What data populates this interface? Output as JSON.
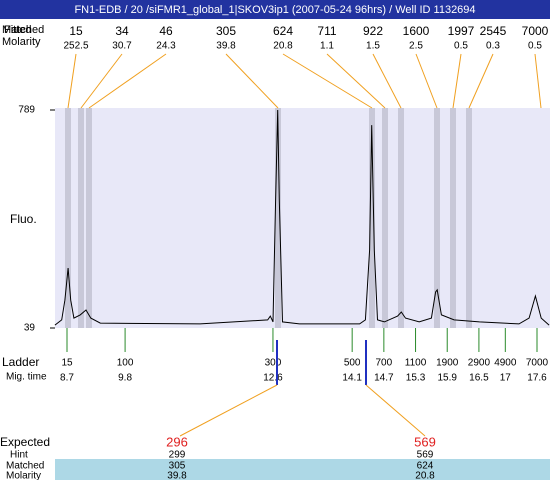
{
  "header": {
    "title": "FN1-EDB / 20 /siFMR1_global_1|SKOV3ip1 (2007-05-24 96hrs) / Well ID 1132694"
  },
  "peaks": {
    "size_label_fitted": "Fitted",
    "size_label": "Matched",
    "molarity_label": "Molarity",
    "sizes": [
      "15",
      "34",
      "46",
      "305",
      "624",
      "711",
      "922",
      "1600",
      "1997",
      "2545",
      "7000"
    ],
    "molarities": [
      "252.5",
      "30.7",
      "24.3",
      "39.8",
      "20.8",
      "1.1",
      "1.5",
      "2.5",
      "0.5",
      "0.3",
      "0.5"
    ]
  },
  "chart_data": {
    "type": "line",
    "y_label": "Fluo.",
    "ylim": [
      39,
      789
    ],
    "yticks": [
      789,
      39
    ],
    "xlim": [
      8.7,
      17.6
    ],
    "color": "#000000",
    "x": [
      8.47,
      8.6,
      8.66,
      8.72,
      8.77,
      8.83,
      8.95,
      9.06,
      9.15,
      9.33,
      11.22,
      12.5,
      12.55,
      12.6,
      12.65,
      12.69,
      12.72,
      12.78,
      13.1,
      14.24,
      14.35,
      14.43,
      14.47,
      14.52,
      14.58,
      14.71,
      14.96,
      15.03,
      15.11,
      15.37,
      15.6,
      15.68,
      15.71,
      15.79,
      16.03,
      16.51,
      17.26,
      17.45,
      17.57,
      17.68,
      17.83
    ],
    "values": [
      49,
      67,
      135,
      245,
      135,
      73,
      84,
      101,
      73,
      56,
      53,
      67,
      80,
      60,
      479,
      789,
      479,
      60,
      53,
      53,
      67,
      307,
      737,
      307,
      67,
      60,
      80,
      94,
      73,
      60,
      73,
      163,
      170,
      84,
      67,
      60,
      53,
      73,
      149,
      73,
      49
    ]
  },
  "ladder": {
    "label": "Ladder",
    "time_label": "Mig. time",
    "sizes": [
      "15",
      "100",
      "300",
      "500",
      "700",
      "1100",
      "1900",
      "2900",
      "4900",
      "7000"
    ],
    "times": [
      8.7,
      9.8,
      12.6,
      14.1,
      14.7,
      15.3,
      15.9,
      16.5,
      17,
      17.6
    ]
  },
  "expected": {
    "labels": [
      "Expected",
      "Hint",
      "Matched",
      "Molarity"
    ],
    "columns": [
      {
        "expected": "296",
        "hint": "299",
        "matched": "305",
        "molarity": "39.8"
      },
      {
        "expected": "569",
        "hint": "569",
        "matched": "624",
        "molarity": "20.8"
      }
    ]
  }
}
